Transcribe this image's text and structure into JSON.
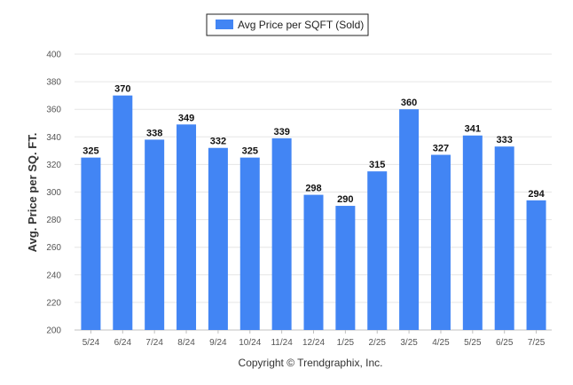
{
  "chart_data": {
    "type": "bar",
    "categories": [
      "5/24",
      "6/24",
      "7/24",
      "8/24",
      "9/24",
      "10/24",
      "11/24",
      "12/24",
      "1/25",
      "2/25",
      "3/25",
      "4/25",
      "5/25",
      "6/25",
      "7/25"
    ],
    "series": [
      {
        "name": "Avg Price per SQFT (Sold)",
        "values": [
          325,
          370,
          338,
          349,
          332,
          325,
          339,
          298,
          290,
          315,
          360,
          327,
          341,
          333,
          294
        ],
        "color": "#4285f4"
      }
    ],
    "value_labels": [
      "325",
      "370",
      "338",
      "349",
      "332",
      "325",
      "339",
      "298",
      "290",
      "315",
      "360",
      "327",
      "341",
      "333",
      "294"
    ],
    "ylabel": "Avg. Price per SQ. FT.",
    "xlabel": "",
    "ylim": [
      200,
      400
    ],
    "yticks": [
      200,
      220,
      240,
      260,
      280,
      300,
      320,
      340,
      360,
      380,
      400
    ],
    "ytick_labels": [
      "200",
      "220",
      "240",
      "260",
      "280",
      "300",
      "320",
      "340",
      "360",
      "380",
      "400"
    ],
    "grid": true,
    "legend_position": "top-center"
  },
  "footer": {
    "copyright": "Copyright © Trendgraphix, Inc."
  },
  "colors": {
    "bar": "#4285f4",
    "grid": "#e6e6e6",
    "axis": "#c0c0c0"
  }
}
